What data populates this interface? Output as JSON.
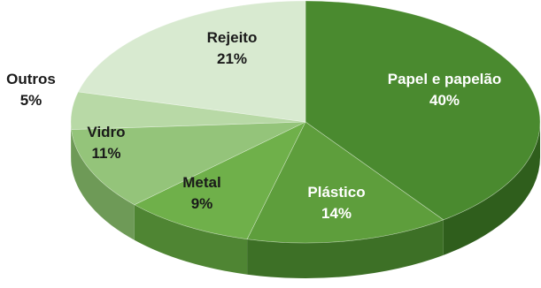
{
  "chart_data": {
    "type": "pie",
    "style": "3d",
    "title": "",
    "start_angle_deg": 0,
    "direction": "clockwise",
    "slices": [
      {
        "name": "Papel e papelão",
        "value": 40,
        "label": "40%",
        "color": "#4a8a2f",
        "side_color": "#2f5e1c",
        "label_color": "light"
      },
      {
        "name": "Plástico",
        "value": 14,
        "label": "14%",
        "color": "#5e9e3c",
        "side_color": "#3d7026",
        "label_color": "light"
      },
      {
        "name": "Metal",
        "value": 9,
        "label": "9%",
        "color": "#6fb04a",
        "side_color": "#4f8533",
        "label_color": "dark"
      },
      {
        "name": "Vidro",
        "value": 11,
        "label": "11%",
        "color": "#94c47a",
        "side_color": "#6e9a57",
        "label_color": "dark"
      },
      {
        "name": "Outros",
        "value": 5,
        "label": "5%",
        "color": "#b8d9a6",
        "side_color": "#90b47e",
        "label_color": "dark",
        "label_outside": true
      },
      {
        "name": "Rejeito",
        "value": 21,
        "label": "21%",
        "color": "#d8ead0",
        "side_color": "#b2c9a6",
        "label_color": "dark"
      }
    ]
  }
}
